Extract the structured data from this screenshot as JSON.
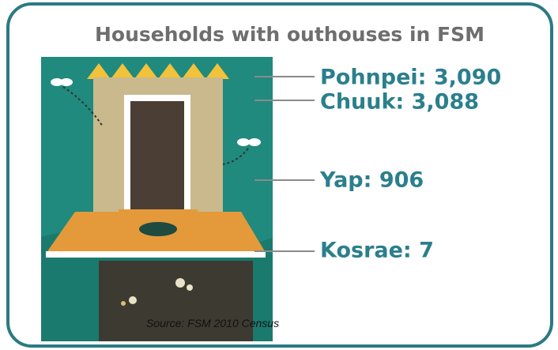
{
  "title": "Households with outhouses in FSM",
  "labels": [
    "Pohnpei: 3,090",
    "Chuuk: 3,088",
    "Yap: 906",
    "Kosrae: 7"
  ],
  "source": "Source: FSM 2010 Census"
}
